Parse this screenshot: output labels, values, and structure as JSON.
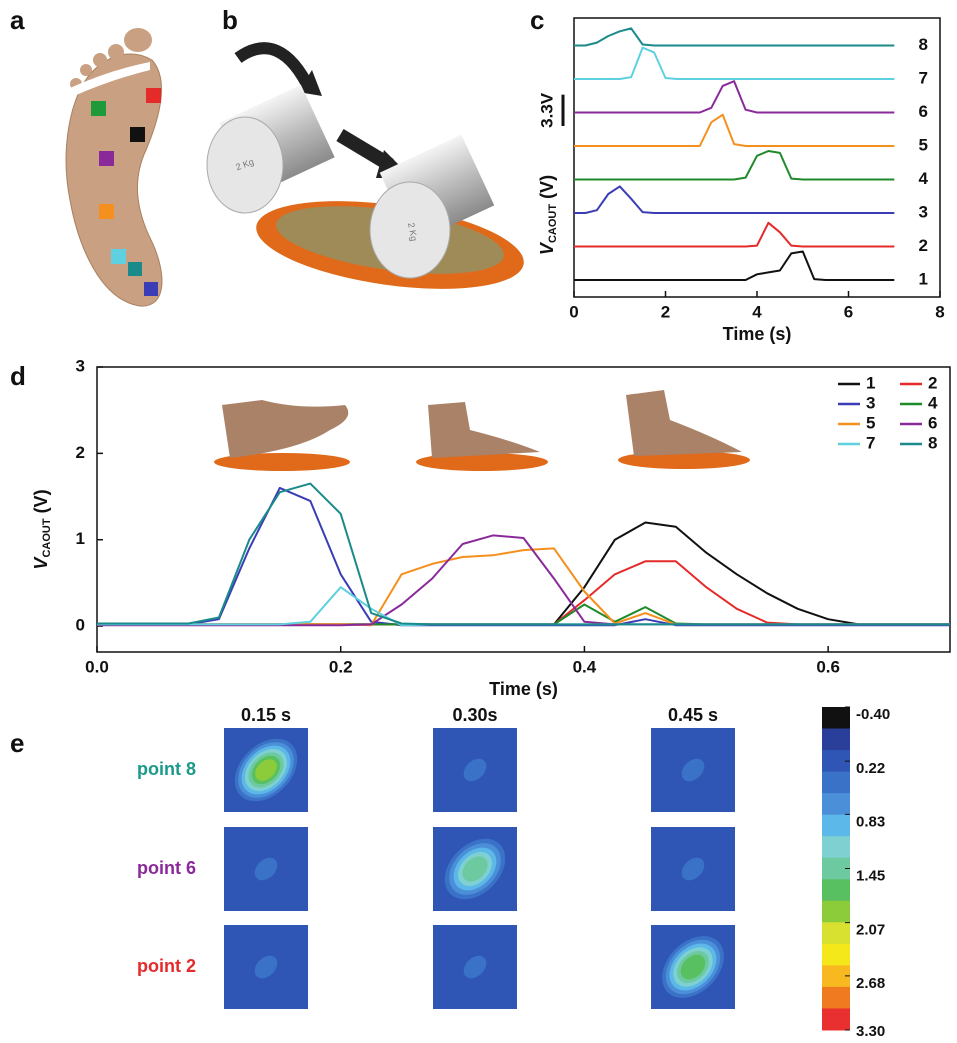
{
  "illustrations": [
    {
      "panel_label": "a"
    },
    {
      "panel_label": "b",
      "mass_labels": [
        "2 Kg",
        "2 Kg"
      ]
    }
  ],
  "chart_data": [
    {
      "type": "line",
      "panel_label": "c",
      "offset_traces": true,
      "x_label": "Time (s)",
      "y_label": {
        "symbol": "V",
        "subscript": "CAOUT",
        "unit": "(V)"
      },
      "scale_bar": {
        "value": 3.3,
        "label": "3.3V"
      },
      "xlim": [
        0,
        8
      ],
      "xticks": [
        0,
        2,
        4,
        6,
        8
      ],
      "x": [
        0,
        0.25,
        0.5,
        0.75,
        1,
        1.25,
        1.5,
        1.75,
        2,
        2.25,
        2.5,
        2.75,
        3,
        3.25,
        3.5,
        3.75,
        4,
        4.25,
        4.5,
        4.75,
        5,
        5.25,
        5.5,
        5.75,
        6,
        6.25,
        6.5,
        6.75,
        7
      ],
      "series": [
        {
          "name": "1",
          "color": "#111111",
          "values": [
            0,
            0,
            0,
            0,
            0,
            0,
            0,
            0,
            0,
            0,
            0,
            0,
            0,
            0,
            0,
            0,
            0.6,
            0.8,
            1.0,
            2.8,
            3.0,
            0.1,
            0,
            0,
            0,
            0,
            0,
            0,
            0
          ]
        },
        {
          "name": "2",
          "color": "#e52a2a",
          "values": [
            0,
            0,
            0,
            0,
            0,
            0,
            0,
            0,
            0,
            0,
            0,
            0,
            0,
            0,
            0,
            0,
            0.1,
            2.5,
            1.5,
            0.1,
            0,
            0,
            0,
            0,
            0,
            0,
            0,
            0,
            0
          ]
        },
        {
          "name": "3",
          "color": "#3a3db5",
          "values": [
            0,
            0,
            0.3,
            2.0,
            2.8,
            1.5,
            0.1,
            0,
            0,
            0,
            0,
            0,
            0,
            0,
            0,
            0,
            0,
            0,
            0,
            0,
            0,
            0,
            0,
            0,
            0,
            0,
            0,
            0,
            0
          ]
        },
        {
          "name": "4",
          "color": "#1f8a2a",
          "values": [
            0,
            0,
            0,
            0,
            0,
            0,
            0,
            0,
            0,
            0,
            0,
            0,
            0,
            0,
            0,
            0.2,
            2.5,
            3.0,
            2.8,
            0.1,
            0,
            0,
            0,
            0,
            0,
            0,
            0,
            0,
            0
          ]
        },
        {
          "name": "5",
          "color": "#f5901e",
          "values": [
            0,
            0,
            0,
            0,
            0,
            0,
            0,
            0,
            0,
            0,
            0,
            0,
            2.5,
            3.3,
            0.2,
            0,
            0,
            0,
            0,
            0,
            0,
            0,
            0,
            0,
            0,
            0,
            0,
            0,
            0
          ]
        },
        {
          "name": "6",
          "color": "#8a2a9a",
          "values": [
            0,
            0,
            0,
            0,
            0,
            0,
            0,
            0,
            0,
            0,
            0,
            0,
            0.5,
            2.8,
            3.3,
            0.3,
            0,
            0,
            0,
            0,
            0,
            0,
            0,
            0,
            0,
            0,
            0,
            0,
            0
          ]
        },
        {
          "name": "7",
          "color": "#5fd0e0",
          "values": [
            0,
            0,
            0,
            0,
            0,
            0.2,
            3.3,
            2.8,
            0.1,
            0,
            0,
            0,
            0,
            0,
            0,
            0,
            0,
            0,
            0,
            0,
            0,
            0,
            0,
            0,
            0,
            0,
            0,
            0,
            0
          ]
        },
        {
          "name": "8",
          "color": "#1b8a8a",
          "values": [
            0,
            0,
            0.3,
            1.0,
            1.5,
            1.8,
            0.1,
            0,
            0,
            0,
            0,
            0,
            0,
            0,
            0,
            0,
            0,
            0,
            0,
            0,
            0,
            0,
            0,
            0,
            0,
            0,
            0,
            0,
            0
          ]
        }
      ]
    },
    {
      "type": "line",
      "panel_label": "d",
      "x_label": "Time (s)",
      "y_label": {
        "symbol": "V",
        "subscript": "CAOUT",
        "unit": "(V)"
      },
      "legend": "upper right",
      "xlim": [
        0,
        0.7
      ],
      "xticks": [
        {
          "value": 0,
          "label": "0.0"
        },
        0.2,
        0.4,
        0.6
      ],
      "ylim": [
        -0.3,
        3
      ],
      "yticks": [
        0,
        1,
        2,
        3
      ],
      "x": [
        0,
        0.025,
        0.05,
        0.075,
        0.1,
        0.125,
        0.15,
        0.175,
        0.2,
        0.225,
        0.25,
        0.275,
        0.3,
        0.325,
        0.35,
        0.375,
        0.4,
        0.425,
        0.45,
        0.475,
        0.5,
        0.525,
        0.55,
        0.575,
        0.6,
        0.625,
        0.65,
        0.675,
        0.7
      ],
      "series": [
        {
          "name": "1",
          "color": "#111111",
          "values": [
            0.02,
            0.02,
            0.02,
            0.02,
            0.02,
            0.02,
            0.02,
            0.02,
            0.02,
            0.02,
            0.02,
            0.02,
            0.02,
            0.02,
            0.02,
            0.02,
            0.45,
            1.0,
            1.2,
            1.15,
            0.85,
            0.6,
            0.38,
            0.2,
            0.08,
            0.02,
            0.02,
            0.02,
            0.02
          ]
        },
        {
          "name": "2",
          "color": "#e52a2a",
          "values": [
            0.02,
            0.02,
            0.02,
            0.02,
            0.02,
            0.02,
            0.02,
            0.02,
            0.02,
            0.02,
            0.02,
            0.02,
            0.02,
            0.02,
            0.02,
            0.02,
            0.3,
            0.6,
            0.75,
            0.75,
            0.45,
            0.2,
            0.04,
            0.02,
            0.02,
            0.02,
            0.02,
            0.02,
            0.02
          ]
        },
        {
          "name": "3",
          "color": "#3a3db5",
          "values": [
            0.02,
            0.02,
            0.02,
            0.02,
            0.08,
            0.9,
            1.6,
            1.45,
            0.6,
            0.05,
            0.01,
            0.01,
            0.01,
            0.01,
            0.01,
            0.01,
            0.01,
            0.01,
            0.08,
            0.01,
            0.01,
            0.01,
            0.01,
            0.01,
            0.01,
            0.01,
            0.01,
            0.01,
            0.01
          ]
        },
        {
          "name": "4",
          "color": "#1f8a2a",
          "values": [
            0.02,
            0.02,
            0.02,
            0.02,
            0.02,
            0.02,
            0.02,
            0.02,
            0.02,
            0.02,
            0.02,
            0.02,
            0.02,
            0.02,
            0.02,
            0.02,
            0.25,
            0.05,
            0.22,
            0.03,
            0.02,
            0.02,
            0.02,
            0.02,
            0.02,
            0.02,
            0.02,
            0.02,
            0.02
          ]
        },
        {
          "name": "5",
          "color": "#f5901e",
          "values": [
            0.02,
            0.02,
            0.02,
            0.02,
            0.02,
            0.02,
            0.02,
            0.02,
            0.02,
            0.01,
            0.6,
            0.72,
            0.8,
            0.82,
            0.88,
            0.9,
            0.4,
            0.03,
            0.15,
            0.02,
            0.02,
            0.02,
            0.02,
            0.02,
            0.02,
            0.02,
            0.02,
            0.02,
            0.02
          ]
        },
        {
          "name": "6",
          "color": "#8a2a9a",
          "values": [
            0.01,
            0.01,
            0.01,
            0.01,
            0.01,
            0.01,
            0.01,
            0.01,
            0.01,
            0.02,
            0.25,
            0.55,
            0.95,
            1.05,
            1.02,
            0.55,
            0.05,
            0.02,
            0.02,
            0.02,
            0.02,
            0.02,
            0.02,
            0.02,
            0.02,
            0.02,
            0.02,
            0.02,
            0.02
          ]
        },
        {
          "name": "7",
          "color": "#5fd0e0",
          "values": [
            0.02,
            0.02,
            0.02,
            0.02,
            0.02,
            0.02,
            0.02,
            0.05,
            0.45,
            0.2,
            0.01,
            0.02,
            0.02,
            0.02,
            0.02,
            0.02,
            0.02,
            0.02,
            0.02,
            0.02,
            0.02,
            0.02,
            0.02,
            0.02,
            0.02,
            0.02,
            0.02,
            0.02,
            0.02
          ]
        },
        {
          "name": "8",
          "color": "#1b8a8a",
          "values": [
            0.03,
            0.03,
            0.03,
            0.03,
            0.1,
            1.0,
            1.55,
            1.65,
            1.3,
            0.15,
            0.03,
            0.02,
            0.02,
            0.02,
            0.02,
            0.02,
            0.02,
            0.02,
            0.02,
            0.02,
            0.02,
            0.02,
            0.02,
            0.02,
            0.02,
            0.02,
            0.02,
            0.02,
            0.02
          ]
        }
      ]
    },
    {
      "type": "heatmap",
      "panel_label": "e",
      "columns": [
        "0.15 s",
        "0.30s",
        "0.45 s"
      ],
      "rows": [
        "point 8",
        "point 6",
        "point 2"
      ],
      "row_colors": [
        "#1b9a8a",
        "#8a2a9a",
        "#e52a2a"
      ],
      "edge_value": 0.1,
      "values": [
        [
          1.85,
          0.35,
          0.35
        ],
        [
          0.35,
          1.45,
          0.35
        ],
        [
          0.35,
          0.35,
          1.7
        ]
      ],
      "colorbar": {
        "lim": [
          -0.4,
          3.3
        ],
        "ticks": [
          {
            "value": -0.4,
            "label": "-0.40"
          },
          {
            "value": 0.22,
            "label": "0.22"
          },
          {
            "value": 0.83,
            "label": "0.83"
          },
          {
            "value": 1.45,
            "label": "1.45"
          },
          {
            "value": 2.07,
            "label": "2.07"
          },
          {
            "value": 2.68,
            "label": "2.68"
          },
          {
            "value": 3.3,
            "label": "3.30"
          }
        ],
        "colors": [
          "#111111",
          "#2a3f9a",
          "#2f55b5",
          "#3a72c8",
          "#4a8fd8",
          "#5cb8e8",
          "#7fd0d0",
          "#6cc9a0",
          "#58c060",
          "#8ccc3a",
          "#d8e030",
          "#f5e81a",
          "#f8b820",
          "#f07a20",
          "#e83030"
        ]
      }
    }
  ]
}
